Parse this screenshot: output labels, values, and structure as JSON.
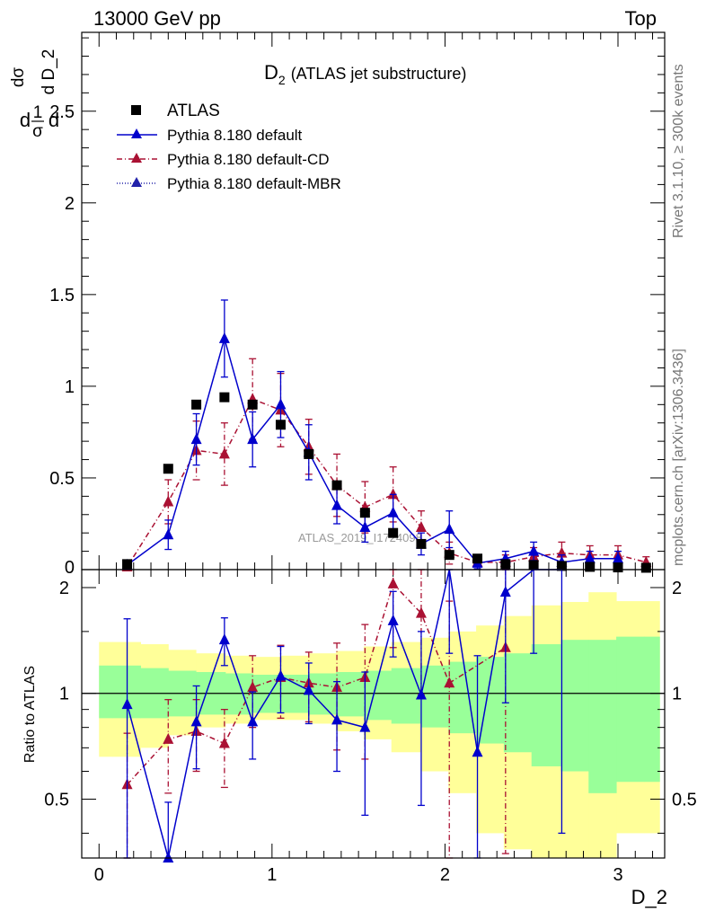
{
  "header": {
    "left": "13000 GeV pp",
    "right": "Top"
  },
  "side_labels": {
    "rivet": "Rivet 3.1.10, ≥ 300k events",
    "mcplots": "mcplots.cern.ch [arXiv:1306.3436]"
  },
  "watermark": "ATLAS_2019_I1724098",
  "legend": {
    "atlas": "ATLAS",
    "default": "Pythia 8.180 default",
    "cd": "Pythia 8.180 default-CD",
    "mbr": "Pythia 8.180 default-MBR"
  },
  "colors": {
    "atlas": "#000000",
    "default": "#0000cc",
    "cd": "#aa1133",
    "mbr": "#2222aa",
    "band_green": "#99ff99",
    "band_yellow": "#ffff99"
  },
  "chart_data": [
    {
      "type": "scatter",
      "title": "D₂ (ATLAS jet substructure)",
      "title_main": "D",
      "title_sub": "2",
      "title_rest": "(ATLAS jet substructure)",
      "ylabel": "d1/σ dσ/d D_2",
      "ylabel_parts": {
        "frac1_num": "1",
        "frac1_den": "σ",
        "frac2_num": "dσ",
        "frac2_den": "d D_2",
        "d": "d"
      },
      "xlabel": "D_2",
      "xlim": [
        -0.1,
        3.27
      ],
      "ylim": [
        0,
        2.93
      ],
      "yticks": [
        0.5,
        1,
        1.5,
        2,
        2.5
      ],
      "ytick_labels": [
        "0.5",
        "1",
        "1.5",
        "2",
        "2.5"
      ],
      "ytick_zero": "0",
      "x": [
        0.1625,
        0.4,
        0.5625,
        0.725,
        0.8875,
        1.05,
        1.2125,
        1.375,
        1.5375,
        1.7,
        1.8625,
        2.025,
        2.1875,
        2.35,
        2.5125,
        2.675,
        2.8375,
        3.0,
        3.1625
      ],
      "series": [
        {
          "name": "ATLAS",
          "values": [
            0.03,
            0.55,
            0.9,
            0.94,
            0.9,
            0.79,
            0.63,
            0.46,
            0.31,
            0.2,
            0.14,
            0.08,
            0.06,
            0.03,
            0.025,
            0.02,
            0.015,
            0.012,
            0.01
          ]
        },
        {
          "name": "Pythia 8.180 default",
          "values": [
            0.025,
            0.19,
            0.71,
            1.26,
            0.71,
            0.9,
            0.64,
            0.35,
            0.23,
            0.31,
            0.14,
            0.22,
            0.035,
            0.06,
            0.1,
            0.04,
            0.06,
            0.06,
            null
          ],
          "errors": [
            0.01,
            0.08,
            0.14,
            0.21,
            0.15,
            0.18,
            0.15,
            0.1,
            0.08,
            0.1,
            0.06,
            0.1,
            0.03,
            0.04,
            0.05,
            0.04,
            0.04,
            0.04,
            null
          ]
        },
        {
          "name": "Pythia 8.180 default-CD",
          "values": [
            0.015,
            0.37,
            0.65,
            0.63,
            0.93,
            0.87,
            0.67,
            0.46,
            0.34,
            0.41,
            0.23,
            0.09,
            0.04,
            0.04,
            0.07,
            0.09,
            0.08,
            0.08,
            0.04
          ],
          "errors": [
            0.01,
            0.12,
            0.16,
            0.17,
            0.22,
            0.2,
            0.15,
            0.17,
            0.14,
            0.15,
            0.09,
            0.06,
            0.04,
            0.04,
            0.05,
            0.06,
            0.05,
            0.05,
            0.03
          ]
        }
      ]
    },
    {
      "type": "scatter",
      "title": "Ratio to ATLAS",
      "ylabel": "Ratio to ATLAS",
      "xlabel": "D_2",
      "xlim": [
        -0.1,
        3.27
      ],
      "ylim": [
        0.34,
        2.25
      ],
      "yticks": [
        0.5,
        1,
        2
      ],
      "ytick_labels": [
        "0.5",
        "1",
        "2"
      ],
      "xticks": [
        0,
        1,
        2,
        3
      ],
      "xtick_labels": [
        "0",
        "1",
        "2",
        "3"
      ],
      "x": [
        0.1625,
        0.4,
        0.5625,
        0.725,
        0.8875,
        1.05,
        1.2125,
        1.375,
        1.5375,
        1.7,
        1.8625,
        2.025,
        2.1875,
        2.35,
        2.5125,
        2.675
      ],
      "band_edges": [
        0,
        0.08,
        0.24,
        0.4,
        0.56,
        0.73,
        0.89,
        1.05,
        1.21,
        1.37,
        1.53,
        1.69,
        1.86,
        2.02,
        2.18,
        2.34,
        2.5,
        2.67,
        2.83,
        2.99,
        3.15,
        3.24
      ],
      "band_green_low": [
        0.85,
        0.85,
        0.85,
        0.86,
        0.87,
        0.87,
        0.88,
        0.88,
        0.87,
        0.86,
        0.84,
        0.82,
        0.8,
        0.77,
        0.72,
        0.68,
        0.62,
        0.6,
        0.52,
        0.56,
        0.56
      ],
      "band_green_high": [
        1.2,
        1.2,
        1.18,
        1.16,
        1.15,
        1.14,
        1.13,
        1.13,
        1.14,
        1.15,
        1.16,
        1.18,
        1.2,
        1.23,
        1.27,
        1.3,
        1.38,
        1.42,
        1.42,
        1.45,
        1.45
      ],
      "band_yellow_low": [
        0.66,
        0.66,
        0.7,
        0.76,
        0.8,
        0.82,
        0.84,
        0.84,
        0.82,
        0.78,
        0.74,
        0.68,
        0.6,
        0.52,
        0.4,
        0.36,
        0.3,
        0.34,
        0.34,
        0.4,
        0.4
      ],
      "band_yellow_high": [
        1.4,
        1.4,
        1.38,
        1.33,
        1.3,
        1.28,
        1.27,
        1.28,
        1.3,
        1.32,
        1.36,
        1.4,
        1.44,
        1.5,
        1.56,
        1.66,
        1.78,
        1.82,
        1.94,
        1.83,
        1.83
      ],
      "series": [
        {
          "name": "Pythia 8.180 default",
          "values": [
            0.93,
            0.34,
            0.83,
            1.42,
            0.83,
            1.12,
            1.02,
            0.84,
            0.8,
            1.61,
            0.99,
            2.3,
            0.68,
            1.94,
            2.3,
            2.3
          ],
          "errors": [
            0.7,
            0.15,
            0.22,
            0.22,
            0.18,
            0.24,
            0.2,
            0.24,
            0.35,
            0.34,
            0.51,
            1.0,
            0.6,
            1.0,
            1.0,
            1.9
          ]
        },
        {
          "name": "Pythia 8.180 default-CD",
          "values": [
            0.55,
            0.74,
            0.78,
            0.72,
            1.04,
            1.11,
            1.07,
            1.04,
            1.11,
            2.05,
            1.69,
            1.07,
            null,
            1.35,
            null,
            null
          ],
          "errors": [
            0.22,
            0.22,
            0.18,
            0.18,
            0.24,
            0.26,
            0.24,
            0.35,
            0.46,
            0.7,
            0.7,
            0.76,
            null,
            1.0,
            null,
            null
          ]
        }
      ]
    }
  ]
}
